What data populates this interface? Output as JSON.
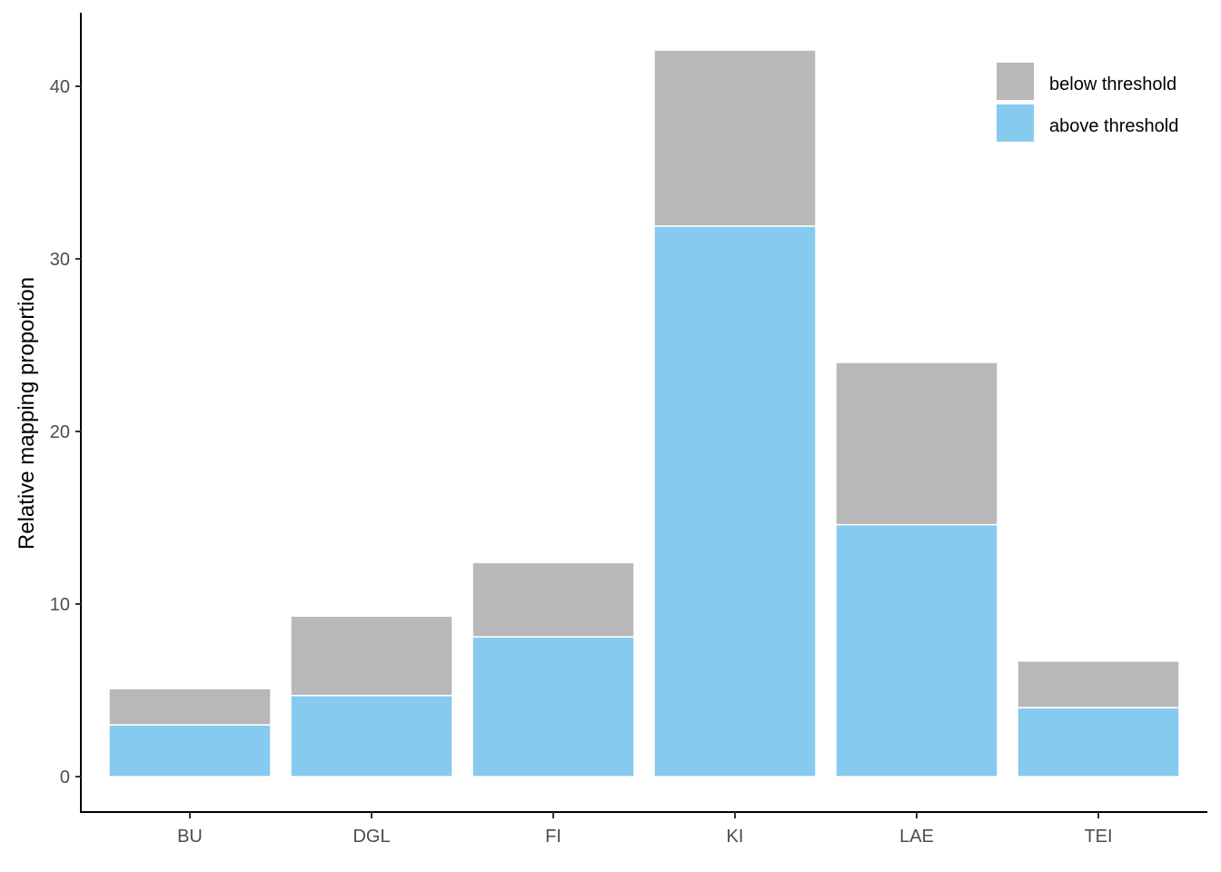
{
  "chart_data": {
    "type": "bar",
    "stacked": true,
    "title": "",
    "xlabel": "",
    "ylabel": "Relative mapping proportion",
    "categories": [
      "BU",
      "DGL",
      "FI",
      "KI",
      "LAE",
      "TEI"
    ],
    "series": [
      {
        "name": "above threshold",
        "color": "#87CAEF",
        "values": [
          3.0,
          4.7,
          8.1,
          31.9,
          14.6,
          4.0
        ]
      },
      {
        "name": "below threshold",
        "color": "#B8B8B8",
        "values": [
          2.1,
          4.6,
          4.3,
          10.2,
          9.4,
          2.7
        ]
      }
    ],
    "totals": [
      5.1,
      9.3,
      12.4,
      42.1,
      24.0,
      6.7
    ],
    "ylim": [
      -2.1,
      44.3
    ],
    "yticks": [
      0,
      10,
      20,
      30,
      40
    ],
    "grid": false,
    "legend": {
      "position": "top-right-inside",
      "entries": [
        {
          "label": "below threshold",
          "color": "#B8B8B8"
        },
        {
          "label": "above threshold",
          "color": "#87CAEF"
        }
      ]
    }
  }
}
